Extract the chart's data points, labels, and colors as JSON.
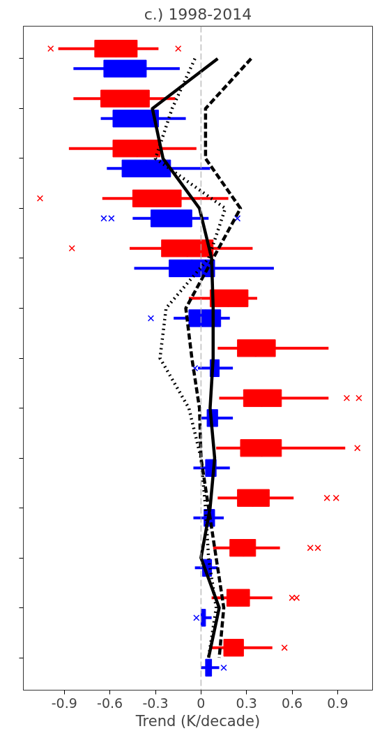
{
  "chart_data": {
    "type": "box",
    "orientation": "horizontal",
    "title": "c.) 1998-2014",
    "xlabel": "Trend (K/decade)",
    "tick_labels": "x",
    "grid": false,
    "categories": [
      null,
      null,
      null,
      null,
      null,
      null,
      null,
      null,
      null,
      null,
      null,
      null,
      null
    ],
    "xlim": [
      -1.17,
      1.13
    ],
    "xticks": [
      -0.9,
      -0.6,
      -0.3,
      0,
      0.3,
      0.6,
      0.9
    ],
    "ref_lines": [
      {
        "axis": "x",
        "value": 0,
        "color": "#b0b0b0",
        "line_style": "dashed"
      }
    ],
    "series": [
      {
        "color": "#ff0000",
        "boxes": [
          {
            "low": -0.94,
            "q1": -0.7,
            "median": -0.56,
            "q3": -0.42,
            "high": -0.28,
            "outliers": [
              -0.99,
              -0.15
            ]
          },
          {
            "low": -0.84,
            "q1": -0.66,
            "median": -0.5,
            "q3": -0.34,
            "high": -0.17
          },
          {
            "low": -0.87,
            "q1": -0.58,
            "median": -0.42,
            "q3": -0.27,
            "high": -0.03
          },
          {
            "low": -0.65,
            "q1": -0.45,
            "median": -0.29,
            "q3": -0.13,
            "high": 0.18,
            "outliers": [
              -1.06
            ]
          },
          {
            "low": -0.47,
            "q1": -0.26,
            "median": -0.09,
            "q3": 0.08,
            "high": 0.34,
            "outliers": [
              -0.85
            ]
          },
          {
            "low": -0.08,
            "q1": 0.06,
            "median": 0.18,
            "q3": 0.31,
            "high": 0.37
          },
          {
            "low": 0.11,
            "q1": 0.24,
            "median": 0.36,
            "q3": 0.49,
            "high": 0.84
          },
          {
            "low": 0.12,
            "q1": 0.28,
            "median": 0.4,
            "q3": 0.53,
            "high": 0.84,
            "outliers": [
              0.96,
              1.04
            ]
          },
          {
            "low": 0.1,
            "q1": 0.26,
            "median": 0.4,
            "q3": 0.53,
            "high": 0.95,
            "outliers": [
              1.03
            ]
          },
          {
            "low": 0.11,
            "q1": 0.24,
            "median": 0.34,
            "q3": 0.45,
            "high": 0.61,
            "outliers": [
              0.83,
              0.89
            ]
          },
          {
            "low": 0.08,
            "q1": 0.19,
            "median": 0.28,
            "q3": 0.36,
            "high": 0.52,
            "outliers": [
              0.72,
              0.77
            ]
          },
          {
            "low": 0.07,
            "q1": 0.17,
            "median": 0.24,
            "q3": 0.32,
            "high": 0.47,
            "outliers": [
              0.6,
              0.63
            ]
          },
          {
            "low": 0.06,
            "q1": 0.15,
            "median": 0.21,
            "q3": 0.28,
            "high": 0.47,
            "outliers": [
              0.55
            ]
          }
        ]
      },
      {
        "color": "#0000ff",
        "boxes": [
          {
            "low": -0.84,
            "q1": -0.64,
            "median": -0.5,
            "q3": -0.36,
            "high": -0.14
          },
          {
            "low": -0.66,
            "q1": -0.58,
            "median": -0.43,
            "q3": -0.28,
            "high": -0.1
          },
          {
            "low": -0.62,
            "q1": -0.52,
            "median": -0.36,
            "q3": -0.2,
            "high": 0.06
          },
          {
            "low": -0.45,
            "q1": -0.33,
            "median": -0.2,
            "q3": -0.06,
            "high": 0.05,
            "outliers": [
              -0.64,
              -0.59,
              0.24
            ]
          },
          {
            "low": -0.44,
            "q1": -0.21,
            "median": -0.06,
            "q3": 0.09,
            "high": 0.48
          },
          {
            "low": -0.18,
            "q1": -0.08,
            "median": 0.03,
            "q3": 0.13,
            "high": 0.19,
            "outliers": [
              -0.33
            ]
          },
          {
            "low": -0.02,
            "q1": 0.06,
            "median": 0.09,
            "q3": 0.12,
            "high": 0.21,
            "outliers": [
              -0.04
            ]
          },
          {
            "low": 0.0,
            "q1": 0.04,
            "median": 0.07,
            "q3": 0.11,
            "high": 0.21
          },
          {
            "low": -0.05,
            "q1": 0.03,
            "median": 0.06,
            "q3": 0.1,
            "high": 0.19
          },
          {
            "low": -0.05,
            "q1": 0.02,
            "median": 0.05,
            "q3": 0.09,
            "high": 0.15
          },
          {
            "low": -0.04,
            "q1": 0.01,
            "median": 0.04,
            "q3": 0.07,
            "high": 0.11
          },
          {
            "low": 0.0,
            "q1": 0.0,
            "median": 0.01,
            "q3": 0.03,
            "high": 0.07,
            "outliers": [
              -0.03
            ]
          },
          {
            "low": 0.0,
            "q1": 0.03,
            "median": 0.05,
            "q3": 0.07,
            "high": 0.12,
            "outliers": [
              0.15
            ]
          }
        ]
      },
      {
        "type": "line",
        "color": "#000000",
        "line_style": "solid",
        "values": [
          0.11,
          -0.32,
          -0.25,
          -0.01,
          0.07,
          0.08,
          0.08,
          0.06,
          0.09,
          0.06,
          0.0,
          0.12,
          0.05
        ]
      },
      {
        "type": "line",
        "color": "#000000",
        "line_style": "dashed",
        "values": [
          0.33,
          0.03,
          0.03,
          0.26,
          0.08,
          -0.1,
          -0.06,
          -0.01,
          0.0,
          0.05,
          0.1,
          0.15,
          0.12
        ]
      },
      {
        "type": "line",
        "color": "#000000",
        "line_style": "dotted",
        "values": [
          -0.04,
          -0.19,
          -0.3,
          0.16,
          0.05,
          -0.23,
          -0.27,
          -0.08,
          0.0,
          0.03,
          0.05,
          0.1,
          0.05
        ]
      }
    ]
  }
}
